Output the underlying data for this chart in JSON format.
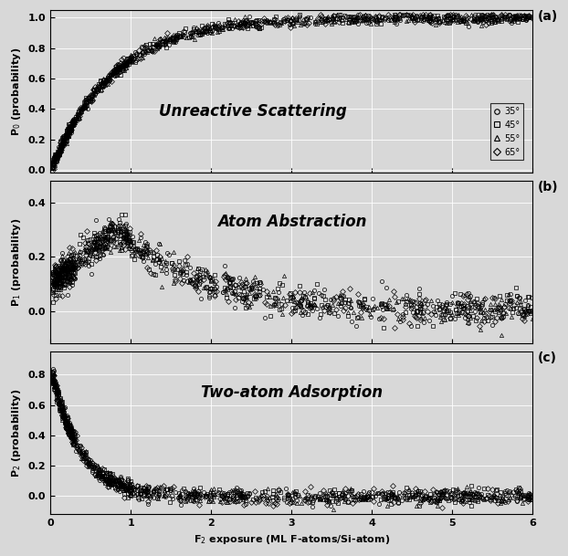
{
  "title_a": "Unreactive Scattering",
  "title_b": "Atom Abstraction",
  "title_c": "Two-atom Adsorption",
  "panel_labels": [
    "(a)",
    "(b)",
    "(c)"
  ],
  "xlabel": "F$_2$ exposure (ML F-atoms/Si-atom)",
  "ylabel_a": "P$_0$ (probability)",
  "ylabel_b": "P$_1$ (probability)",
  "ylabel_c": "P$_2$ (probability)",
  "legend_labels": [
    "35°",
    "45°",
    "55°",
    "65°"
  ],
  "markers": [
    "o",
    "s",
    "^",
    "D"
  ],
  "marker_size": 3,
  "xlim": [
    0,
    6
  ],
  "ylim_a": [
    -0.02,
    1.05
  ],
  "ylim_b": [
    -0.12,
    0.48
  ],
  "ylim_c": [
    -0.12,
    0.95
  ],
  "yticks_a": [
    0.0,
    0.2,
    0.4,
    0.6,
    0.8,
    1.0
  ],
  "yticks_b": [
    0.0,
    0.2,
    0.4
  ],
  "yticks_c": [
    0.0,
    0.2,
    0.4,
    0.6,
    0.8
  ],
  "xticks": [
    0,
    1,
    2,
    3,
    4,
    5,
    6
  ],
  "color": "black",
  "bg_color": "#d8d8d8",
  "plot_bg": "#d8d8d8",
  "figsize": [
    6.22,
    6.09
  ],
  "dpi": 100,
  "n_points": 300,
  "seed": 42
}
